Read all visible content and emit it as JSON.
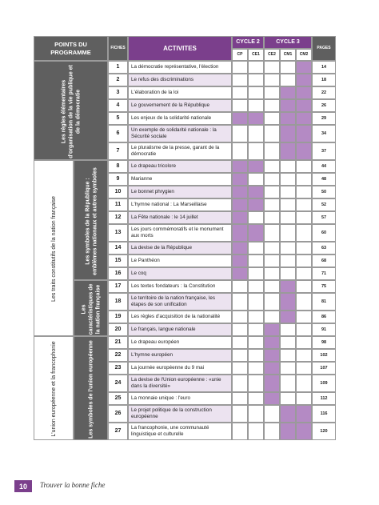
{
  "header": {
    "points": "POINTS DU PROGRAMME",
    "fiches": "FICHES",
    "activites": "ACTIVITES",
    "cycle2": "CYCLE 2",
    "cycle3": "CYCLE 3",
    "levels": [
      "CP",
      "CE1",
      "CE2",
      "CM1",
      "CM2"
    ],
    "pages": "PAGES"
  },
  "sections": [
    {
      "label": "Les règles élémentaires d'organisation de la vie publique et de la démocratie",
      "subsections": [
        {
          "label": null,
          "rows": [
            {
              "fiche": 1,
              "activite": "La démocratie représentative, l'élection",
              "page": 14
            },
            {
              "fiche": 2,
              "activite": "Le refus des discriminations",
              "page": 18
            },
            {
              "fiche": 3,
              "activite": "L'élaboration de la loi",
              "page": 22
            },
            {
              "fiche": 4,
              "activite": "Le gouvernement de la République",
              "page": 26
            },
            {
              "fiche": 5,
              "activite": "Les enjeux de la solidarité nationale",
              "page": 29
            },
            {
              "fiche": 6,
              "activite": "Un exemple de solidarité nationale : la Sécurité sociale",
              "page": 34
            },
            {
              "fiche": 7,
              "activite": "Le pluralisme de la presse, garant de la démocratie",
              "page": 37
            }
          ]
        }
      ]
    },
    {
      "label": "Les traits constitutifs de la nation française",
      "subsections": [
        {
          "label": "Les symboles de la République : emblèmes nationaux et autres symboles",
          "rows": [
            {
              "fiche": 8,
              "activite": "Le drapeau tricolore",
              "page": 44
            },
            {
              "fiche": 9,
              "activite": "Marianne",
              "page": 48
            },
            {
              "fiche": 10,
              "activite": "Le bonnet phrygien",
              "page": 50
            },
            {
              "fiche": 11,
              "activite": "L'hymne national : La Marseillaise",
              "page": 52
            },
            {
              "fiche": 12,
              "activite": "La Fête nationale : le 14 juillet",
              "page": 57
            },
            {
              "fiche": 13,
              "activite": "Les jours commémoratifs et le monument aux morts",
              "page": 60
            },
            {
              "fiche": 14,
              "activite": "La devise de la République",
              "page": 63
            },
            {
              "fiche": 15,
              "activite": "Le Panthéon",
              "page": 68
            },
            {
              "fiche": 16,
              "activite": "Le coq",
              "page": 71
            }
          ]
        },
        {
          "label": "Les caractéristiques de la nation française",
          "rows": [
            {
              "fiche": 17,
              "activite": "Les textes fondateurs : la Constitution",
              "page": 75
            },
            {
              "fiche": 18,
              "activite": "Le territoire de la nation française, les étapes de son unification",
              "page": 81
            },
            {
              "fiche": 19,
              "activite": "Les règles d'acquisition de la nationalité",
              "page": 86
            },
            {
              "fiche": 20,
              "activite": "Le français, langue nationale",
              "page": 91
            }
          ]
        }
      ]
    },
    {
      "label": "L'union européenne et la francophonie",
      "subsections": [
        {
          "label": "Les symboles de l'union européenne",
          "rows": [
            {
              "fiche": 21,
              "activite": "Le drapeau européen",
              "page": 98
            },
            {
              "fiche": 22,
              "activite": "L'hymne européen",
              "page": 102
            },
            {
              "fiche": 23,
              "activite": "La journée européenne du 9 mai",
              "page": 107
            },
            {
              "fiche": 24,
              "activite": "La devise de l'Union européenne : «unie dans la diversité»",
              "page": 109
            },
            {
              "fiche": 25,
              "activite": "La monnaie unique : l'euro",
              "page": 112
            },
            {
              "fiche": 26,
              "activite": "Le projet politique de la construction européenne",
              "page": 116
            },
            {
              "fiche": 27,
              "activite": "La francophonie, une communauté linguistique et culturelle",
              "page": 120
            }
          ]
        }
      ]
    }
  ],
  "footer": {
    "page": "10",
    "title": "Trouver la bonne fiche"
  }
}
